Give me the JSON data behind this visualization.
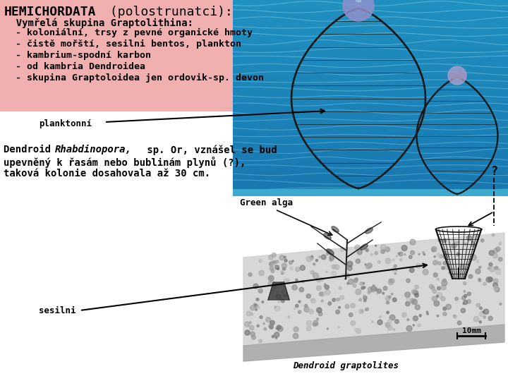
{
  "title_bold": "HEMICHORDATA",
  "title_normal": " (polostrunatci):",
  "subtitle": "  Vymřelá skupina Graptolithina:",
  "bullets": [
    "  - koloniální, trsy z pevné organické hmoty",
    "  - čistě mořští, sesilni bentos, plankton",
    "  - kambrium-spodní karbon",
    "  - od kambria Dendroidea",
    "  - skupina Graptoloidea jen ordovik-sp. devon"
  ],
  "label_planktonni": "planktonní",
  "label_sesilni": "sesilni",
  "body_line1a": "Dendroid ",
  "body_line1b": "Rhabdinopora,",
  "body_line1c": " sp. Or, vznášel se bud",
  "body_line2": "upevněný k řasám nebo bublinám plynů (?),",
  "body_line3": "taková kolonie dosahovala až 30 cm.",
  "bg_pink": "#F0B0B0",
  "bg_white": "#FFFFFF",
  "bg_blue_dark": "#2090C0",
  "bg_blue_mid": "#40B0D8",
  "bg_blue_light": "#60C8E8",
  "text_color": "#000000",
  "dome_color": "#1a1a1a",
  "title_fontsize": 13,
  "subtitle_fontsize": 10,
  "bullet_fontsize": 9.5,
  "body_fontsize": 10,
  "label_fontsize": 9
}
